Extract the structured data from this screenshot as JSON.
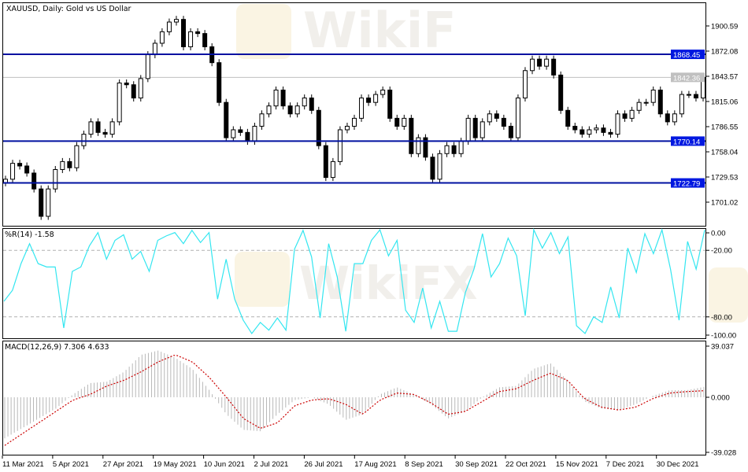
{
  "watermark": "WikiFX",
  "colors": {
    "level_line": "#0010a0",
    "level_label_bg": "#0018e0",
    "current_price_line": "#c0c0c0",
    "bull_body": "#ffffff",
    "bear_body": "#000000",
    "wpr_line": "#33e6f0",
    "macd_hist": "#b8b8b8",
    "macd_signal": "#cc0000",
    "grid_dash": "#b0b0b0"
  },
  "chart_data": [
    {
      "type": "candlestick",
      "title": "XAUUSD, Daily:  Gold vs US Dollar",
      "ylim": [
        1673.4,
        1927.3
      ],
      "y_ticks": [
        "1900.59",
        "1872.08",
        "1843.57",
        "1815.06",
        "1786.55",
        "1758.04",
        "1729.53",
        "1701.02"
      ],
      "levels": [
        {
          "value": 1868.45,
          "label": "1868.45"
        },
        {
          "value": 1770.14,
          "label": "1770.14"
        },
        {
          "value": 1722.79,
          "label": "1722.79"
        }
      ],
      "current_price": {
        "value": 1842.36,
        "label": "1842.36"
      },
      "closes": [
        1727,
        1745,
        1742,
        1734,
        1716,
        1685,
        1716,
        1738,
        1747,
        1740,
        1765,
        1778,
        1792,
        1780,
        1778,
        1792,
        1836,
        1834,
        1819,
        1841,
        1868,
        1881,
        1894,
        1905,
        1908,
        1877,
        1894,
        1892,
        1877,
        1859,
        1814,
        1774,
        1783,
        1780,
        1770,
        1787,
        1801,
        1810,
        1828,
        1810,
        1801,
        1810,
        1819,
        1805,
        1765,
        1729,
        1747,
        1783,
        1787,
        1796,
        1819,
        1814,
        1823,
        1828,
        1796,
        1787,
        1796,
        1756,
        1774,
        1752,
        1727,
        1756,
        1765,
        1756,
        1770,
        1796,
        1774,
        1792,
        1801,
        1796,
        1787,
        1774,
        1819,
        1850,
        1863,
        1855,
        1863,
        1845,
        1805,
        1787,
        1783,
        1778,
        1783,
        1785,
        1780,
        1778,
        1801,
        1796,
        1805,
        1814,
        1814,
        1828,
        1801,
        1792,
        1801,
        1823,
        1823,
        1819,
        1842.36
      ]
    },
    {
      "type": "line",
      "title": "%R(14) -1.58",
      "ylim": [
        -100,
        0
      ],
      "y_ticks": [
        "0.00",
        "-20.00",
        "-80.00",
        "-100.00"
      ],
      "levels": [
        -20,
        -80
      ],
      "values": [
        -66,
        -56,
        -32,
        -14,
        -32,
        -35,
        -35,
        -90,
        -39,
        -35,
        -16,
        -4,
        -28,
        -11,
        -6,
        -28,
        -21,
        -39,
        -11,
        -7,
        -4,
        -14,
        -2,
        -13,
        -4,
        -64,
        -28,
        -64,
        -83,
        -95,
        -85,
        -92,
        -81,
        -92,
        -19,
        -2,
        -26,
        -81,
        -14,
        -44,
        -93,
        -32,
        -32,
        -11,
        -1.5,
        -25,
        -11,
        -74,
        -85,
        -54,
        -90,
        -66,
        -93,
        -93,
        -58,
        -37,
        -5,
        -44,
        -32,
        -9,
        -25,
        -79,
        -1.5,
        -18,
        -4,
        -23,
        -8,
        -88,
        -95,
        -80,
        -85,
        -53,
        -81,
        -18,
        -40,
        -5,
        -23,
        -1.5,
        -37,
        -83,
        -12,
        -37,
        -1.58
      ]
    },
    {
      "type": "bar",
      "title": "MACD(12,26,9) 7.306 4.633",
      "ylim": [
        -39.028,
        39.037
      ],
      "y_ticks": [
        "39.037",
        "0.000",
        "-39.028"
      ],
      "series": [
        {
          "kind": "histogram",
          "values": [
            -29,
            -22,
            -15,
            -8,
            2,
            10,
            11,
            18,
            30,
            33,
            28,
            20,
            5,
            -12,
            -23,
            -24,
            -12,
            -2,
            0,
            -5,
            -16,
            -12,
            2,
            7,
            2,
            -5,
            -15,
            -10,
            0,
            7,
            8,
            20,
            24,
            12,
            -3,
            -8,
            -9,
            -5,
            1,
            5,
            5,
            7.306
          ]
        },
        {
          "kind": "signal",
          "values": [
            -34,
            -26,
            -18,
            -10,
            -2,
            2,
            8,
            12,
            18,
            25,
            30,
            25,
            14,
            0,
            -15,
            -22,
            -18,
            -6,
            -2,
            -1,
            -5,
            -12,
            -2,
            3,
            2,
            -4,
            -12,
            -10,
            -3,
            4,
            6,
            12,
            17,
            12,
            -1,
            -7,
            -9,
            -7,
            -1,
            3,
            4,
            4.633
          ]
        }
      ]
    }
  ],
  "x_axis": {
    "labels": [
      "11 Mar 2021",
      "5 Apr 2021",
      "27 Apr 2021",
      "19 May 2021",
      "10 Jun 2021",
      "2 Jul 2021",
      "26 Jul 2021",
      "17 Aug 2021",
      "8 Sep 2021",
      "30 Sep 2021",
      "22 Oct 2021",
      "15 Nov 2021",
      "7 Dec 2021",
      "30 Dec 2021"
    ]
  }
}
